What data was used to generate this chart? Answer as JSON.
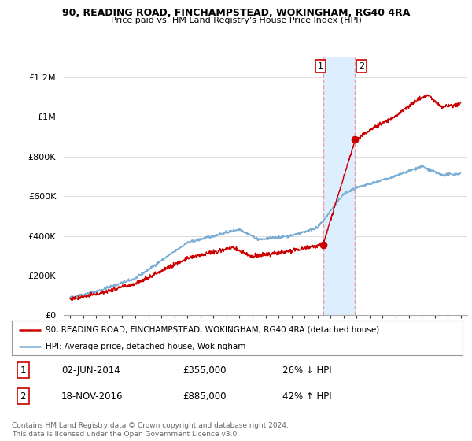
{
  "title": "90, READING ROAD, FINCHAMPSTEAD, WOKINGHAM, RG40 4RA",
  "subtitle": "Price paid vs. HM Land Registry's House Price Index (HPI)",
  "red_label": "90, READING ROAD, FINCHAMPSTEAD, WOKINGHAM, RG40 4RA (detached house)",
  "blue_label": "HPI: Average price, detached house, Wokingham",
  "footnote": "Contains HM Land Registry data © Crown copyright and database right 2024.\nThis data is licensed under the Open Government Licence v3.0.",
  "annotation1": {
    "num": "1",
    "date": "02-JUN-2014",
    "price": "£355,000",
    "hpi": "26% ↓ HPI"
  },
  "annotation2": {
    "num": "2",
    "date": "18-NOV-2016",
    "price": "£885,000",
    "hpi": "42% ↑ HPI"
  },
  "sale1_x": 2014.42,
  "sale1_y": 355000,
  "sale2_x": 2016.88,
  "sale2_y": 885000,
  "ylim": [
    0,
    1300000
  ],
  "xlim": [
    1994.5,
    2025.5
  ],
  "red_color": "#cc0000",
  "blue_color": "#7aadd4",
  "shade_color": "#ddeeff",
  "vline_color": "#ee9999",
  "background_color": "#ffffff",
  "grid_color": "#dddddd",
  "yticks": [
    0,
    200000,
    400000,
    600000,
    800000,
    1000000,
    1200000
  ],
  "ytick_labels": [
    "£0",
    "£200K",
    "£400K",
    "£600K",
    "£800K",
    "£1M",
    "£1.2M"
  ]
}
